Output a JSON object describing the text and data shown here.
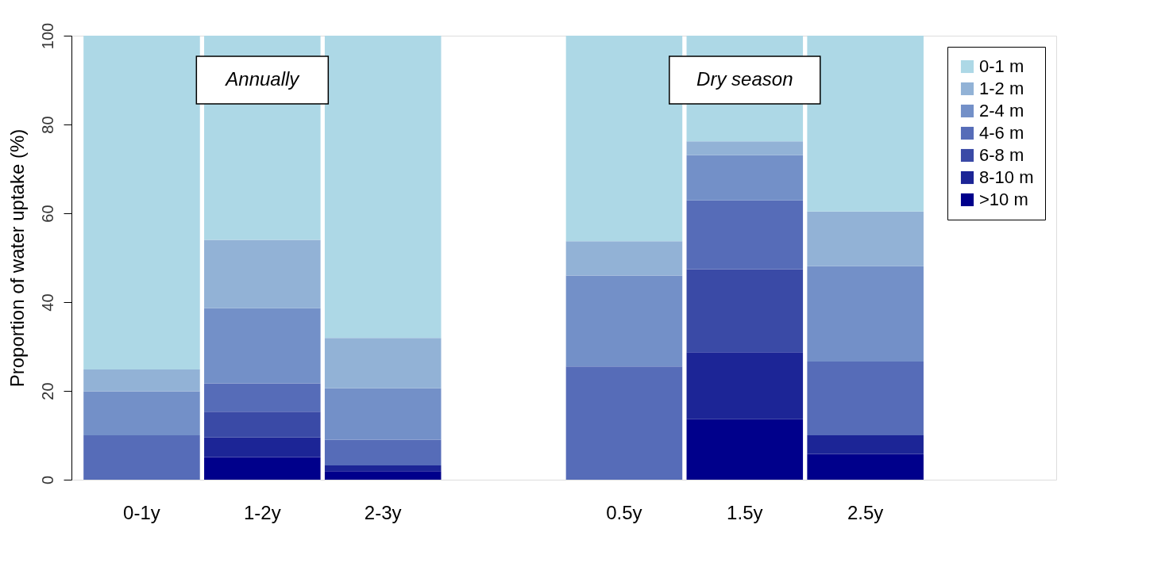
{
  "chart_data": {
    "type": "bar",
    "stacked": true,
    "ylabel": "Proportion of water uptake (%)",
    "categories": [
      "0-1y",
      "1-2y",
      "2-3y",
      null,
      "0.5y",
      "1.5y",
      "2.5y",
      null
    ],
    "series": [
      {
        "name": ">10 m",
        "color": "#00008b",
        "values": [
          0,
          5.1,
          1.9,
          null,
          0,
          13.6,
          5.8,
          null
        ]
      },
      {
        "name": "8-10 m",
        "color": "#1c2596",
        "values": [
          0,
          4.4,
          1.3,
          null,
          0,
          15.1,
          4.2,
          null
        ]
      },
      {
        "name": "6-8 m",
        "color": "#3a4aa6",
        "values": [
          0,
          5.8,
          0,
          null,
          0,
          18.7,
          0,
          null
        ]
      },
      {
        "name": "4-6 m",
        "color": "#566cb8",
        "values": [
          10.0,
          6.4,
          5.8,
          null,
          25.5,
          15.5,
          16.6,
          null
        ]
      },
      {
        "name": "2-4 m",
        "color": "#7390c8",
        "values": [
          9.9,
          16.9,
          11.6,
          null,
          20.5,
          10.2,
          21.5,
          null
        ]
      },
      {
        "name": "1-2 m",
        "color": "#92b2d6",
        "values": [
          4.9,
          15.4,
          11.3,
          null,
          7.7,
          3.1,
          12.3,
          null
        ]
      },
      {
        "name": "0-1 m",
        "color": "#add8e6",
        "values": [
          75.2,
          46.0,
          68.1,
          null,
          46.3,
          23.8,
          39.6,
          null
        ]
      }
    ],
    "ylim": [
      0,
      100
    ],
    "yticks": [
      0,
      20,
      40,
      60,
      80,
      100
    ],
    "grid": false,
    "legend": "top right",
    "annotations": [
      "Annually",
      "Dry season"
    ]
  }
}
